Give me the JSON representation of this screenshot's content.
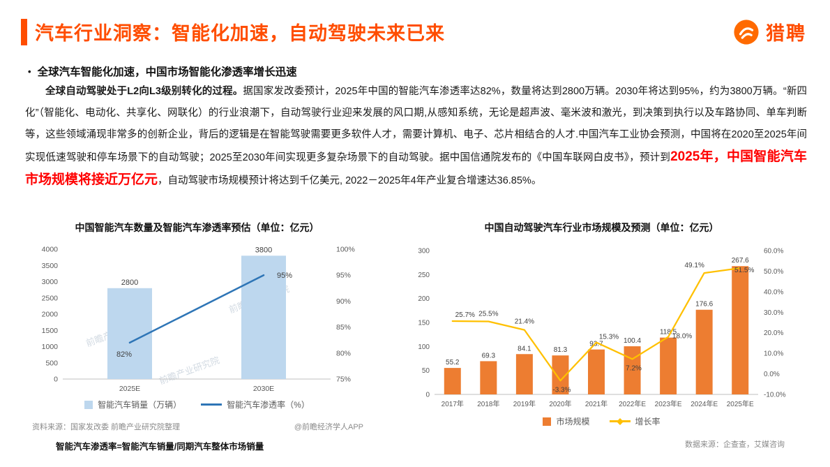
{
  "theme": {
    "accent": "#FF4D00",
    "highlight_red": "#FF0000",
    "text_gray": "#595959"
  },
  "header": {
    "title": "汽车行业洞察：智能化加速，自动驾驶未来已来",
    "logo_text": "猎聘"
  },
  "section": {
    "bullet": "•",
    "heading": "全球汽车智能化加速，中国市场智能化渗透率增长迅速"
  },
  "paragraph": {
    "lead": "全球自动驾驶处于L2向L3级别转化的过程。",
    "body1": "据国家发改委预计，2025年中国的智能汽车渗透率达82%，数量将达到2800万辆。2030年将达到95%，约为3800万辆。“新四化”（智能化、电动化、共享化、网联化）的行业浪潮下，自动驾驶行业迎来发展的风口期,从感知系统，无论是超声波、毫米波和激光，到决策到执行以及车路协同、单车判断等，这些领域涌现非常多的创新企业，背后的逻辑是在智能驾驶需要更多软件人才，需要计算机、电子、芯片相结合的人才.中国汽车工业协会预测，中国将在2020至2025年间实现低速驾驶和停车场景下的自动驾驶；2025至2030年间实现更多复杂场景下的自动驾驶。据中国信通院发布的《中国车联网白皮书》，预计到",
    "highlight": "2025年，中国智能汽车市场规模将接近万亿元",
    "body2": "，自动驾驶市场规模预计将达到千亿美元, 2022－2025年4年产业复合增速达36.85%。"
  },
  "chart_data": [
    {
      "type": "bar",
      "title": "中国智能汽车数量及智能汽车渗透率预估（单位：亿元）",
      "categories": [
        "2025E",
        "2030E"
      ],
      "series": [
        {
          "name": "智能汽车销量（万辆）",
          "type": "bar",
          "axis": "left",
          "color": "#BDD7EE",
          "values": [
            2800,
            3800
          ]
        },
        {
          "name": "智能汽车渗透率（%）",
          "type": "line",
          "axis": "right",
          "color": "#2E75B6",
          "values": [
            82,
            95
          ]
        }
      ],
      "bar_labels": [
        "2800",
        "3800"
      ],
      "line_labels": [
        "82%",
        "95%"
      ],
      "left_axis": {
        "min": 0,
        "max": 4000,
        "step": 500,
        "ticks": [
          "0",
          "500",
          "1000",
          "1500",
          "2000",
          "2500",
          "3000",
          "3500",
          "4000"
        ]
      },
      "right_axis": {
        "min": 75,
        "max": 100,
        "step": 5,
        "ticks": [
          "75%",
          "80%",
          "85%",
          "90%",
          "95%",
          "100%"
        ]
      },
      "grid": false,
      "legend_position": "bottom",
      "watermark": "前瞻产业研究院",
      "source": "资料来源：国家发改委 前瞻产业研究院整理",
      "credit": "@前瞻经济学人APP",
      "footnote": "智能汽车渗透率=智能汽车销量/同期汽车整体市场销量"
    },
    {
      "type": "bar",
      "title": "中国自动驾驶汽车行业市场规模及预测（单位：亿元）",
      "categories": [
        "2017年",
        "2018年",
        "2019年",
        "2020年",
        "2021年",
        "2022年E",
        "2023年E",
        "2024年E",
        "2025年E"
      ],
      "series": [
        {
          "name": "市场规模",
          "type": "bar",
          "axis": "left",
          "color": "#ED7D31",
          "values": [
            55.2,
            69.3,
            84.1,
            81.3,
            93.7,
            100.4,
            118.5,
            176.6,
            267.6
          ]
        },
        {
          "name": "增长率",
          "type": "line",
          "axis": "right",
          "color": "#FFC000",
          "values": [
            25.7,
            25.5,
            21.4,
            -3.3,
            15.3,
            7.2,
            18.0,
            49.1,
            51.5
          ]
        }
      ],
      "bar_labels": [
        "55.2",
        "69.3",
        "84.1",
        "81.3",
        "93.7",
        "100.4",
        "118.5",
        "176.6",
        "267.6"
      ],
      "line_labels": [
        "25.7%",
        "25.5%",
        "21.4%",
        "-3.3%",
        "15.3%",
        "7.2%",
        "18.0%",
        "49.1%",
        "51.5%"
      ],
      "left_axis": {
        "min": 0,
        "max": 300,
        "step": 50,
        "ticks": [
          "0",
          "50",
          "100",
          "150",
          "200",
          "250",
          "300"
        ]
      },
      "right_axis": {
        "min": -10,
        "max": 60,
        "step": 10,
        "ticks": [
          "-10.0%",
          "0.0%",
          "10.0%",
          "20.0%",
          "30.0%",
          "40.0%",
          "50.0%",
          "60.0%"
        ]
      },
      "grid": false,
      "legend_position": "bottom",
      "source": "数据来源：企查查，艾媒咨询"
    }
  ]
}
